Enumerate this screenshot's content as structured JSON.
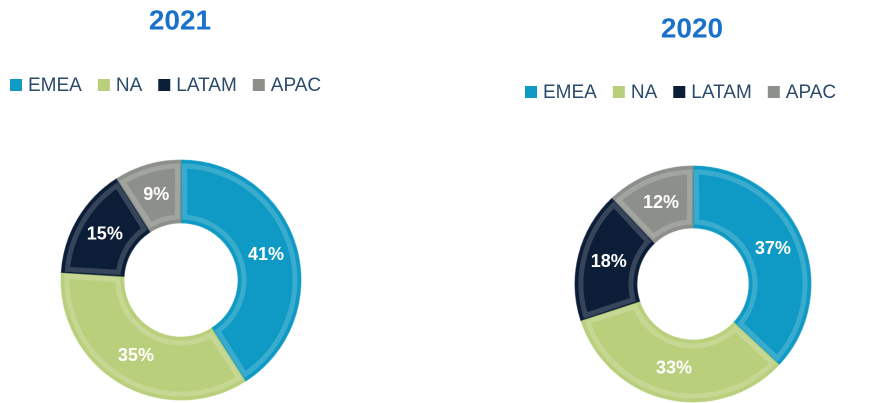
{
  "chart_data": [
    {
      "type": "donut",
      "title": "2021",
      "categories": [
        "EMEA",
        "NA",
        "LATAM",
        "APAC"
      ],
      "values": [
        41,
        35,
        15,
        9
      ],
      "value_labels": [
        "41%",
        "35%",
        "15%",
        "9%"
      ],
      "colors": [
        "#0e9ac4",
        "#b9cf7b",
        "#0c1d38",
        "#8d908a"
      ],
      "legend": "top"
    },
    {
      "type": "donut",
      "title": "2020",
      "categories": [
        "EMEA",
        "NA",
        "LATAM",
        "APAC"
      ],
      "values": [
        37,
        33,
        18,
        12
      ],
      "value_labels": [
        "37%",
        "33%",
        "18%",
        "12%"
      ],
      "colors": [
        "#0e9ac4",
        "#b9cf7b",
        "#0c1d38",
        "#8d908a"
      ],
      "legend": "top"
    }
  ]
}
